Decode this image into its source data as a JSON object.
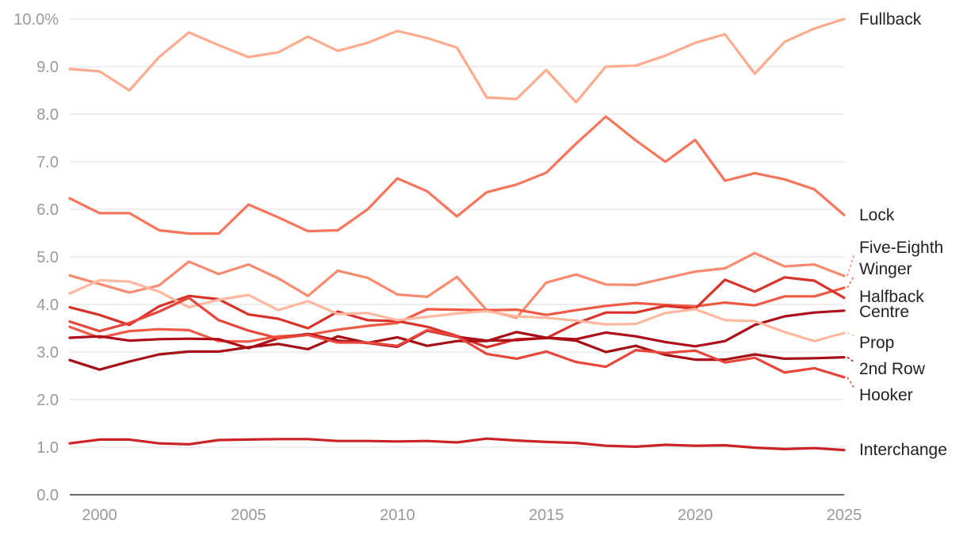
{
  "chart_data": {
    "type": "line",
    "title": "",
    "xlabel": "",
    "ylabel": "",
    "xlim": [
      1999,
      2025
    ],
    "ylim": [
      0,
      10
    ],
    "grid": true,
    "legend": "direct labels at line ends (right)",
    "y_ticks": [
      {
        "value": 0,
        "label": "0.0"
      },
      {
        "value": 1,
        "label": "1.0"
      },
      {
        "value": 2,
        "label": "2.0"
      },
      {
        "value": 3,
        "label": "3.0"
      },
      {
        "value": 4,
        "label": "4.0"
      },
      {
        "value": 5,
        "label": "5.0"
      },
      {
        "value": 6,
        "label": "6.0"
      },
      {
        "value": 7,
        "label": "7.0"
      },
      {
        "value": 8,
        "label": "8.0"
      },
      {
        "value": 9,
        "label": "9.0"
      },
      {
        "value": 10,
        "label": "10.0%"
      }
    ],
    "x_ticks": [
      {
        "value": 2000,
        "label": "2000"
      },
      {
        "value": 2005,
        "label": "2005"
      },
      {
        "value": 2010,
        "label": "2010"
      },
      {
        "value": 2015,
        "label": "2015"
      },
      {
        "value": 2020,
        "label": "2020"
      },
      {
        "value": 2025,
        "label": "2025"
      }
    ],
    "x": [
      1999,
      2000,
      2001,
      2002,
      2003,
      2004,
      2005,
      2006,
      2007,
      2008,
      2009,
      2010,
      2011,
      2012,
      2013,
      2014,
      2015,
      2016,
      2017,
      2018,
      2019,
      2020,
      2021,
      2022,
      2023,
      2024,
      2025
    ],
    "series": [
      {
        "name": "Fullback",
        "color": "#fcab8f",
        "label_value": 10.0,
        "values": [
          8.95,
          8.9,
          8.5,
          9.2,
          9.72,
          9.45,
          9.2,
          9.3,
          9.63,
          9.33,
          9.5,
          9.75,
          9.6,
          9.4,
          8.35,
          8.32,
          8.93,
          8.25,
          9.0,
          9.02,
          9.23,
          9.5,
          9.68,
          8.85,
          9.52,
          9.8,
          10.0
        ]
      },
      {
        "name": "Lock",
        "color": "#f6755b",
        "label_value": 5.88,
        "values": [
          6.23,
          5.92,
          5.92,
          5.56,
          5.49,
          5.49,
          6.1,
          5.83,
          5.54,
          5.56,
          6.0,
          6.65,
          6.38,
          5.85,
          6.36,
          6.52,
          6.77,
          7.38,
          7.95,
          7.45,
          7.0,
          7.46,
          6.6,
          6.76,
          6.63,
          6.42,
          5.88
        ]
      },
      {
        "name": "Five-Eighth",
        "color": "#fa8a6f",
        "label_value": 5.2,
        "values": [
          4.61,
          4.43,
          4.25,
          4.4,
          4.9,
          4.64,
          4.84,
          4.55,
          4.18,
          4.71,
          4.56,
          4.21,
          4.16,
          4.58,
          3.88,
          3.72,
          4.46,
          4.63,
          4.42,
          4.41,
          4.55,
          4.69,
          4.76,
          5.08,
          4.8,
          4.84,
          4.6
        ]
      },
      {
        "name": "Winger",
        "color": "#ef5a45",
        "label_value": 4.75,
        "values": [
          3.53,
          3.3,
          3.44,
          3.48,
          3.46,
          3.23,
          3.22,
          3.33,
          3.36,
          3.47,
          3.55,
          3.61,
          3.9,
          3.89,
          3.88,
          3.89,
          3.78,
          3.88,
          3.97,
          4.03,
          3.99,
          3.96,
          4.04,
          3.98,
          4.17,
          4.17,
          4.35
        ]
      },
      {
        "name": "Halfback",
        "color": "#d9322b",
        "label_value": 4.17,
        "values": [
          3.94,
          3.78,
          3.57,
          3.96,
          4.18,
          4.11,
          3.79,
          3.7,
          3.5,
          3.85,
          3.67,
          3.65,
          3.53,
          3.34,
          3.1,
          3.27,
          3.29,
          3.6,
          3.83,
          3.83,
          3.97,
          3.91,
          4.52,
          4.27,
          4.57,
          4.5,
          4.14
        ]
      },
      {
        "name": "Centre",
        "color": "#ad0e19",
        "label_value": 3.85,
        "values": [
          3.3,
          3.33,
          3.24,
          3.27,
          3.28,
          3.27,
          3.08,
          3.29,
          3.38,
          3.24,
          3.19,
          3.11,
          3.45,
          3.32,
          3.24,
          3.25,
          3.3,
          3.27,
          3.41,
          3.33,
          3.21,
          3.12,
          3.23,
          3.57,
          3.75,
          3.83,
          3.87
        ]
      },
      {
        "name": "Prop",
        "color": "#fdb89e",
        "label_value": 3.2,
        "values": [
          4.23,
          4.51,
          4.48,
          4.27,
          3.94,
          4.1,
          4.2,
          3.88,
          4.07,
          3.8,
          3.82,
          3.67,
          3.74,
          3.81,
          3.86,
          3.75,
          3.72,
          3.66,
          3.58,
          3.59,
          3.82,
          3.9,
          3.67,
          3.65,
          3.42,
          3.23,
          3.4
        ]
      },
      {
        "name": "2nd Row",
        "color": "#a50f15",
        "label_value": 2.65,
        "values": [
          2.83,
          2.63,
          2.8,
          2.95,
          3.01,
          3.01,
          3.1,
          3.17,
          3.06,
          3.33,
          3.19,
          3.31,
          3.13,
          3.23,
          3.23,
          3.42,
          3.3,
          3.24,
          3.0,
          3.13,
          2.94,
          2.84,
          2.84,
          2.95,
          2.86,
          2.87,
          2.89
        ]
      },
      {
        "name": "Hooker",
        "color": "#e8463a",
        "label_value": 2.1,
        "values": [
          3.64,
          3.44,
          3.61,
          3.85,
          4.14,
          3.67,
          3.45,
          3.29,
          3.36,
          3.2,
          3.2,
          3.13,
          3.46,
          3.33,
          2.96,
          2.86,
          3.01,
          2.79,
          2.69,
          3.04,
          2.98,
          3.03,
          2.78,
          2.88,
          2.57,
          2.66,
          2.47
        ]
      },
      {
        "name": "Interchange",
        "color": "#cb2225",
        "label_value": 0.95,
        "values": [
          1.08,
          1.16,
          1.16,
          1.08,
          1.06,
          1.15,
          1.16,
          1.17,
          1.17,
          1.13,
          1.13,
          1.12,
          1.13,
          1.1,
          1.18,
          1.14,
          1.11,
          1.09,
          1.03,
          1.01,
          1.05,
          1.03,
          1.04,
          0.99,
          0.96,
          0.98,
          0.94
        ]
      }
    ]
  }
}
